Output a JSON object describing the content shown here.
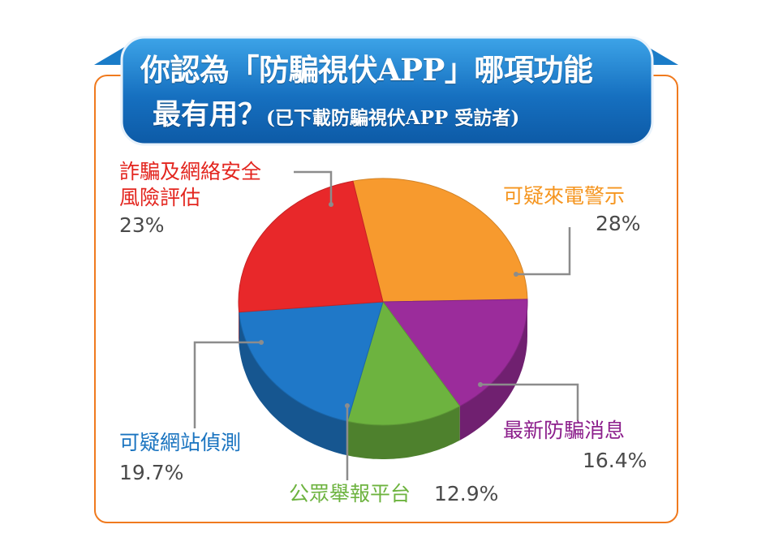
{
  "header": {
    "title_line1": "你認為「防騙視伏APP」哪項功能",
    "title_line2_main": "最有用？",
    "title_line2_sub": "(已下載防騙視伏APP 受訪者)"
  },
  "colors": {
    "banner": "#1670c0",
    "frame": "#f07a1e",
    "leader": "#8c8c8c"
  },
  "chart_data": {
    "type": "pie",
    "title": "你認為「防騙視伏APP」哪項功能最有用？(已下載防騙視伏APP 受訪者)",
    "unit": "%",
    "slices": [
      {
        "label": "可疑來電警示",
        "value": 28,
        "display": "28%",
        "color": "#f79a2e"
      },
      {
        "label": "最新防騙消息",
        "value": 16.4,
        "display": "16.4%",
        "color": "#9b2c9b"
      },
      {
        "label": "公眾舉報平台",
        "value": 12.9,
        "display": "12.9%",
        "color": "#6db33f"
      },
      {
        "label": "可疑網站偵測",
        "value": 19.7,
        "display": "19.7%",
        "color": "#1f78c8"
      },
      {
        "label": "詐騙及網絡安全風險評估",
        "label_line1": "詐騙及網絡安全",
        "label_line2": "風險評估",
        "value": 23,
        "display": "23%",
        "color": "#e8282a"
      }
    ]
  }
}
